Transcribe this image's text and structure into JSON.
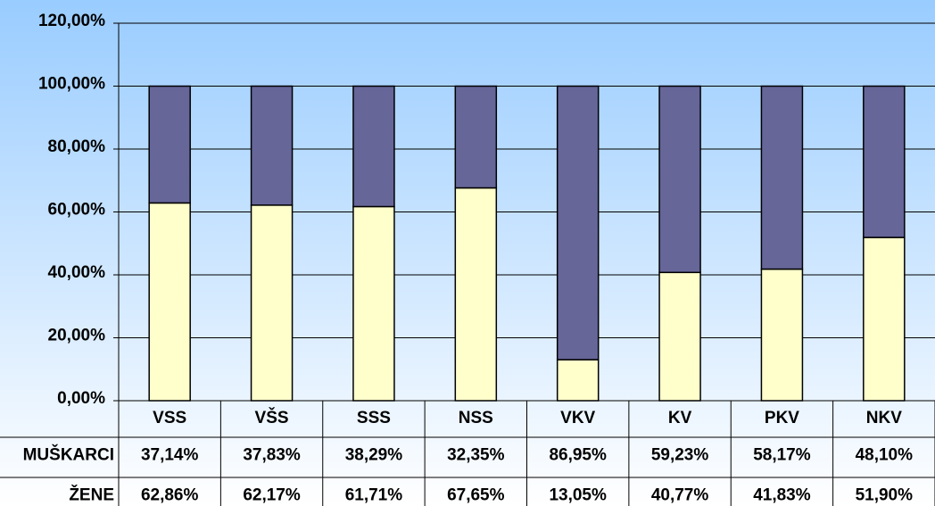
{
  "chart_data": {
    "type": "stacked_bar",
    "categories": [
      "VSS",
      "VŠS",
      "SSS",
      "NSS",
      "VKV",
      "KV",
      "PKV",
      "NKV"
    ],
    "series": [
      {
        "name": "MUŠKARCI",
        "color": "#666699",
        "values": [
          37.14,
          37.83,
          38.29,
          32.35,
          86.95,
          59.23,
          58.17,
          48.1
        ],
        "value_labels": [
          "37,14%",
          "37,83%",
          "38,29%",
          "32,35%",
          "86,95%",
          "59,23%",
          "58,17%",
          "48,10%"
        ]
      },
      {
        "name": "ŽENE",
        "color": "#ffffcc",
        "values": [
          62.86,
          62.17,
          61.71,
          67.65,
          13.05,
          40.77,
          41.83,
          51.9
        ],
        "value_labels": [
          "62,86%",
          "62,17%",
          "61,71%",
          "67,65%",
          "13,05%",
          "40,77%",
          "41,83%",
          "51,90%"
        ]
      }
    ],
    "ylim": [
      0,
      120
    ],
    "yticks": [
      {
        "value": 0,
        "label": "0,00%"
      },
      {
        "value": 20,
        "label": "20,00%"
      },
      {
        "value": 40,
        "label": "40,00%"
      },
      {
        "value": 60,
        "label": "60,00%"
      },
      {
        "value": 80,
        "label": "80,00%"
      },
      {
        "value": 100,
        "label": "100,00%"
      },
      {
        "value": 120,
        "label": "120,00%"
      }
    ],
    "grid": true
  }
}
